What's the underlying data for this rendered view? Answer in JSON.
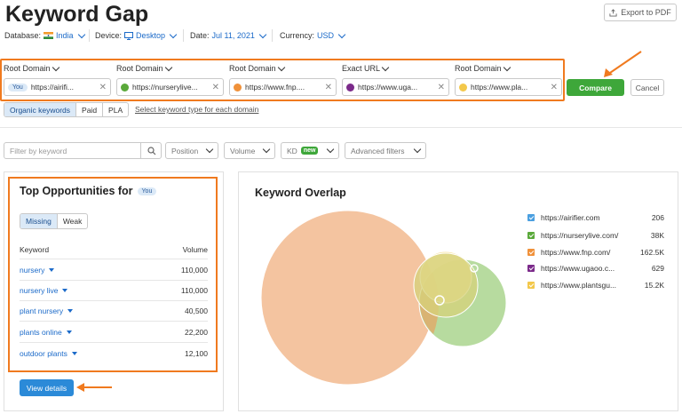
{
  "page": {
    "title": "Keyword Gap",
    "export_label": "Export to PDF"
  },
  "meta": {
    "database_label": "Database:",
    "database_value": "India",
    "device_label": "Device:",
    "device_value": "Desktop",
    "date_label": "Date:",
    "date_value": "Jul 11, 2021",
    "currency_label": "Currency:",
    "currency_value": "USD"
  },
  "domains": [
    {
      "type": "Root Domain",
      "value": "https://airifi...",
      "badge": "You",
      "color": "#4a9fe0"
    },
    {
      "type": "Root Domain",
      "value": "https://nurserylive...",
      "color": "#5aa93a"
    },
    {
      "type": "Root Domain",
      "value": "https://www.fnp....",
      "color": "#f0913a"
    },
    {
      "type": "Exact URL",
      "value": "https://www.uga...",
      "color": "#7b2a8a"
    },
    {
      "type": "Root Domain",
      "value": "https://www.pla...",
      "color": "#f3c84b"
    }
  ],
  "actions": {
    "compare": "Compare",
    "cancel": "Cancel"
  },
  "keyword_types": [
    "Organic keywords",
    "Paid",
    "PLA"
  ],
  "keyword_type_link": "Select keyword type for each domain",
  "filters": {
    "placeholder": "Filter by keyword",
    "position": "Position",
    "volume": "Volume",
    "kd": "KD",
    "kd_badge": "new",
    "advanced": "Advanced filters"
  },
  "opportunities": {
    "title": "Top Opportunities for",
    "badge": "You",
    "tabs": [
      "Missing",
      "Weak"
    ],
    "col_keyword": "Keyword",
    "col_volume": "Volume",
    "rows": [
      {
        "keyword": "nursery",
        "volume": "110,000"
      },
      {
        "keyword": "nursery live",
        "volume": "110,000"
      },
      {
        "keyword": "plant nursery",
        "volume": "40,500"
      },
      {
        "keyword": "plants online",
        "volume": "22,200"
      },
      {
        "keyword": "outdoor plants",
        "volume": "12,100"
      }
    ],
    "view_details": "View details"
  },
  "overlap": {
    "title": "Keyword Overlap",
    "legend": [
      {
        "name": "https://airifier.com",
        "value": "206",
        "color": "#4a9fe0"
      },
      {
        "name": "https://nurserylive.com/",
        "value": "38K",
        "color": "#5aa93a"
      },
      {
        "name": "https://www.fnp.com/",
        "value": "162.5K",
        "color": "#f0913a"
      },
      {
        "name": "https://www.ugaoo.c...",
        "value": "629",
        "color": "#7b2a8a"
      },
      {
        "name": "https://www.plantsgu...",
        "value": "15.2K",
        "color": "#f3c84b"
      }
    ]
  },
  "colors": {
    "accent_orange": "#f07a1f",
    "compare_green": "#3ea73a",
    "link_blue": "#1b6ac9",
    "button_blue": "#2b8ad8"
  }
}
